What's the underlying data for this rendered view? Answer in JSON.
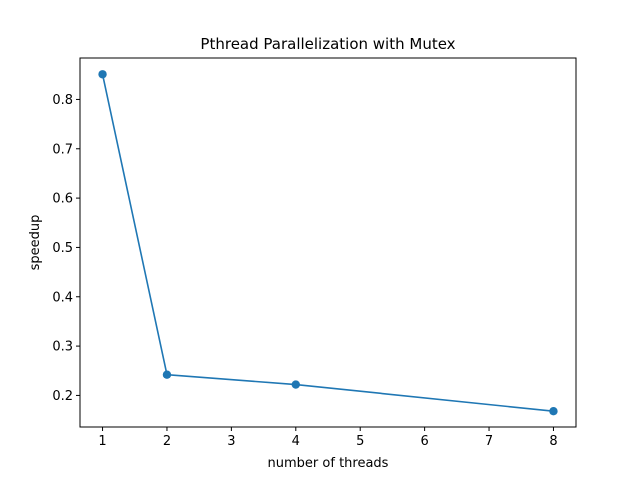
{
  "chart_data": {
    "type": "line",
    "title": "Pthread Parallelization with Mutex",
    "xlabel": "number of threads",
    "ylabel": "speedup",
    "xlim": [
      0.65,
      8.35
    ],
    "ylim": [
      0.136,
      0.884
    ],
    "xticks": [
      1,
      2,
      3,
      4,
      5,
      6,
      7,
      8
    ],
    "yticks": [
      0.2,
      0.3,
      0.4,
      0.5,
      0.6,
      0.7,
      0.8
    ],
    "grid": false,
    "series": [
      {
        "x": [
          1,
          2,
          4,
          8
        ],
        "y": [
          0.851,
          0.242,
          0.222,
          0.168
        ],
        "color": "#1f77b4",
        "marker": "circle"
      }
    ]
  }
}
